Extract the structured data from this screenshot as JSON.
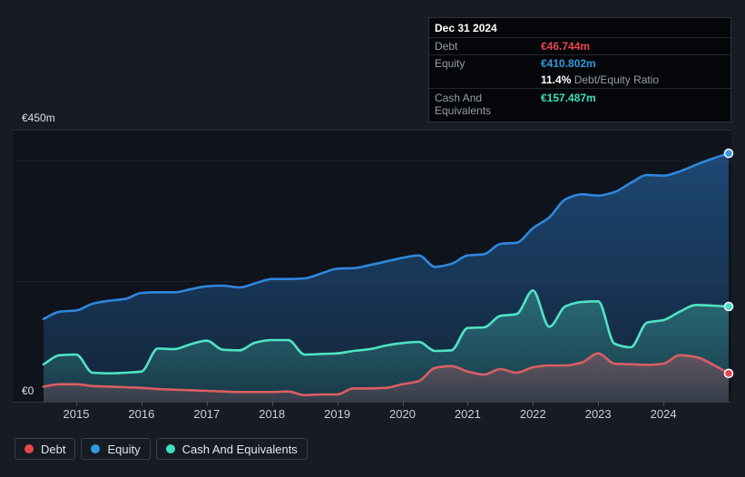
{
  "tooltip": {
    "date": "Dec 31 2024",
    "debt": {
      "label": "Debt",
      "value": "€46.744m"
    },
    "equity": {
      "label": "Equity",
      "value": "€410.802m"
    },
    "ratio": {
      "bold": "11.4%",
      "text": "Debt/Equity Ratio"
    },
    "cash": {
      "label": "Cash And Equivalents",
      "value": "€157.487m"
    }
  },
  "axis": {
    "y_top_label": "€450m",
    "y_zero_label": "€0",
    "x_ticks": [
      2015,
      2016,
      2017,
      2018,
      2019,
      2020,
      2021,
      2022,
      2023,
      2024
    ]
  },
  "legend": {
    "items": [
      {
        "label": "Debt",
        "color_key": "debt_accent"
      },
      {
        "label": "Equity",
        "color_key": "equity_accent"
      },
      {
        "label": "Cash And Equivalents",
        "color_key": "cash_accent"
      }
    ]
  },
  "colors": {
    "background": "#161b24",
    "plot_background": "#0e131c",
    "debt": "#d85f63",
    "equity": "#2f87dd",
    "cash": "#50e3c4",
    "debt_accent": "#e9464f",
    "equity_accent": "#2f9ce0",
    "cash_accent": "#3ee1c1"
  },
  "chart_data": {
    "type": "area",
    "title": "",
    "xlabel": "",
    "ylabel": "",
    "x_unit": "decimal_year",
    "x_range": [
      2014.5,
      2025.0
    ],
    "ylim": [
      0,
      450
    ],
    "y_axis_labels": [
      "€0",
      "€450m"
    ],
    "y_gridlines": [
      450,
      400,
      200,
      0
    ],
    "x_ticks": [
      2015,
      2016,
      2017,
      2018,
      2019,
      2020,
      2021,
      2022,
      2023,
      2024
    ],
    "grid": true,
    "legend_position": "bottom-left",
    "last_point_date": "Dec 31 2024",
    "series": [
      {
        "name": "Debt",
        "color": "#d85f63",
        "last_value": 46.744,
        "points": [
          [
            2014.5,
            25
          ],
          [
            2014.75,
            29
          ],
          [
            2015,
            29
          ],
          [
            2015.25,
            26
          ],
          [
            2015.5,
            25
          ],
          [
            2015.75,
            24
          ],
          [
            2016,
            23
          ],
          [
            2016.25,
            21
          ],
          [
            2016.5,
            20
          ],
          [
            2016.75,
            19
          ],
          [
            2017,
            18
          ],
          [
            2017.25,
            17
          ],
          [
            2017.5,
            16
          ],
          [
            2017.75,
            16
          ],
          [
            2018,
            16
          ],
          [
            2018.25,
            17
          ],
          [
            2018.5,
            11
          ],
          [
            2018.75,
            12
          ],
          [
            2019,
            12
          ],
          [
            2019.25,
            22
          ],
          [
            2019.5,
            22
          ],
          [
            2019.75,
            23
          ],
          [
            2020,
            29
          ],
          [
            2020.25,
            34
          ],
          [
            2020.5,
            56
          ],
          [
            2020.75,
            59
          ],
          [
            2021,
            50
          ],
          [
            2021.25,
            45
          ],
          [
            2021.5,
            54
          ],
          [
            2021.75,
            48
          ],
          [
            2022,
            57
          ],
          [
            2022.25,
            60
          ],
          [
            2022.5,
            60
          ],
          [
            2022.75,
            65
          ],
          [
            2023,
            80
          ],
          [
            2023.25,
            63
          ],
          [
            2023.5,
            62
          ],
          [
            2023.75,
            61
          ],
          [
            2024,
            63
          ],
          [
            2024.25,
            77
          ],
          [
            2024.5,
            74
          ],
          [
            2024.75,
            62
          ],
          [
            2025,
            46.744
          ]
        ]
      },
      {
        "name": "Equity",
        "color": "#2f87dd",
        "last_value": 410.802,
        "points": [
          [
            2014.5,
            137
          ],
          [
            2014.75,
            149
          ],
          [
            2015,
            151
          ],
          [
            2015.25,
            162
          ],
          [
            2015.5,
            167
          ],
          [
            2015.75,
            170
          ],
          [
            2016,
            180
          ],
          [
            2016.25,
            181
          ],
          [
            2016.5,
            181
          ],
          [
            2016.75,
            186
          ],
          [
            2017,
            191
          ],
          [
            2017.25,
            192
          ],
          [
            2017.5,
            189
          ],
          [
            2017.75,
            196
          ],
          [
            2018,
            203
          ],
          [
            2018.25,
            203
          ],
          [
            2018.5,
            204
          ],
          [
            2018.75,
            212
          ],
          [
            2019,
            220
          ],
          [
            2019.25,
            221
          ],
          [
            2019.5,
            226
          ],
          [
            2019.75,
            232
          ],
          [
            2020,
            238
          ],
          [
            2020.25,
            242
          ],
          [
            2020.5,
            223
          ],
          [
            2020.75,
            228
          ],
          [
            2021,
            242
          ],
          [
            2021.25,
            244
          ],
          [
            2021.5,
            261
          ],
          [
            2021.75,
            263
          ],
          [
            2022,
            287
          ],
          [
            2022.25,
            305
          ],
          [
            2022.5,
            335
          ],
          [
            2022.75,
            343
          ],
          [
            2023,
            341
          ],
          [
            2023.25,
            347
          ],
          [
            2023.5,
            362
          ],
          [
            2023.75,
            375
          ],
          [
            2024,
            374
          ],
          [
            2024.25,
            381
          ],
          [
            2024.5,
            392
          ],
          [
            2024.75,
            402
          ],
          [
            2025,
            410.802
          ]
        ]
      },
      {
        "name": "Cash And Equivalents",
        "color": "#50e3c4",
        "last_value": 157.487,
        "points": [
          [
            2014.5,
            62
          ],
          [
            2014.75,
            77
          ],
          [
            2015,
            78
          ],
          [
            2015.25,
            48
          ],
          [
            2015.5,
            47
          ],
          [
            2015.75,
            48
          ],
          [
            2016,
            50
          ],
          [
            2016.25,
            88
          ],
          [
            2016.5,
            87
          ],
          [
            2016.75,
            95
          ],
          [
            2017,
            101
          ],
          [
            2017.25,
            86
          ],
          [
            2017.5,
            85
          ],
          [
            2017.75,
            98
          ],
          [
            2018,
            102
          ],
          [
            2018.25,
            102
          ],
          [
            2018.5,
            78
          ],
          [
            2018.75,
            79
          ],
          [
            2019,
            80
          ],
          [
            2019.25,
            84
          ],
          [
            2019.5,
            87
          ],
          [
            2019.75,
            93
          ],
          [
            2020,
            97
          ],
          [
            2020.25,
            99
          ],
          [
            2020.5,
            84
          ],
          [
            2020.75,
            85
          ],
          [
            2021,
            122
          ],
          [
            2021.25,
            123
          ],
          [
            2021.5,
            142
          ],
          [
            2021.75,
            145
          ],
          [
            2022,
            184
          ],
          [
            2022.25,
            124
          ],
          [
            2022.5,
            158
          ],
          [
            2022.75,
            165
          ],
          [
            2023,
            166
          ],
          [
            2023.25,
            96
          ],
          [
            2023.5,
            90
          ],
          [
            2023.75,
            131
          ],
          [
            2024,
            135
          ],
          [
            2024.25,
            149
          ],
          [
            2024.5,
            160
          ],
          [
            2024.75,
            159
          ],
          [
            2025,
            157.487
          ]
        ]
      }
    ]
  }
}
